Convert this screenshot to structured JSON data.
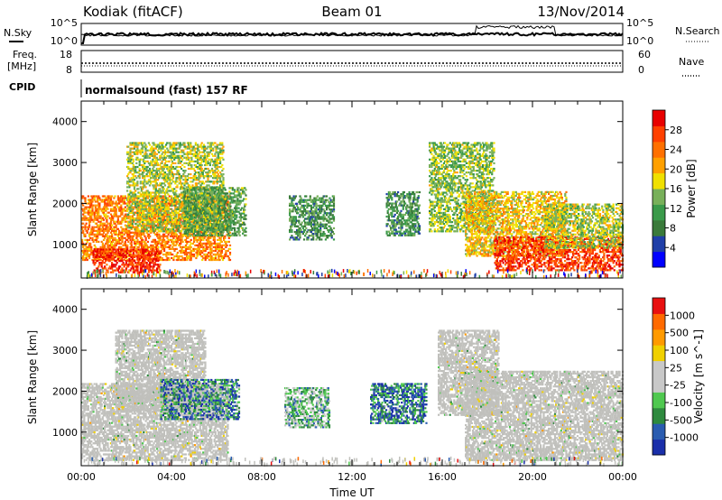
{
  "header": {
    "site": "Kodiak (fitACF)",
    "beam": "Beam 01",
    "date": "13/Nov/2014"
  },
  "strips": {
    "nsky_label": "N.Sky",
    "nsearch_label": "N.Search",
    "nsky_ticks": [
      "10^5",
      "10^0"
    ],
    "nsearch_ticks": [
      "10^5",
      "10^0"
    ],
    "freq_label_1": "Freq.",
    "freq_label_2": "[MHz]",
    "freq_ticks": [
      "18",
      "8"
    ],
    "nave_label": "Nave",
    "nave_ticks": [
      "60",
      "0"
    ],
    "cpid_label": "CPID",
    "cpid_text": "normalsound (fast) 157 RF"
  },
  "colors": {
    "power": [
      "#0000ff",
      "#1f3fa8",
      "#3a7a3a",
      "#3a9a4a",
      "#78b05a",
      "#f0e000",
      "#ffa000",
      "#ff7000",
      "#ff4000",
      "#e80000"
    ],
    "velocity": [
      "#1a2faa",
      "#2a5cb0",
      "#2e8a3e",
      "#4fc84f",
      "#c8c8c8",
      "#c8c8c8",
      "#f0d000",
      "#ff9a00",
      "#ff6a00",
      "#e81010"
    ],
    "ground_scatter": "#c0c0bc"
  },
  "chart_data": [
    {
      "type": "heatmap",
      "name": "power",
      "xlabel": "",
      "ylabel": "Slant Range [km]",
      "xlim": [
        0,
        24
      ],
      "ylim": [
        180,
        4500
      ],
      "yticks": [
        "1000",
        "2000",
        "3000",
        "4000"
      ],
      "colorbar": {
        "label": "Power [dB]",
        "ticks": [
          "28",
          "24",
          "20",
          "16",
          "12",
          "8",
          "4"
        ],
        "range": [
          0,
          32
        ]
      },
      "scatter_regions": [
        {
          "t0": 0.0,
          "t1": 6.6,
          "r0": 600,
          "r1": 2200,
          "level": 0.75
        },
        {
          "t0": 0.5,
          "t1": 3.5,
          "r0": 300,
          "r1": 900,
          "level": 0.95
        },
        {
          "t0": 2.0,
          "t1": 6.3,
          "r0": 1300,
          "r1": 3500,
          "level": 0.5
        },
        {
          "t0": 4.5,
          "t1": 7.3,
          "r0": 1200,
          "r1": 2400,
          "level": 0.35
        },
        {
          "t0": 9.2,
          "t1": 11.2,
          "r0": 1100,
          "r1": 2200,
          "level": 0.3
        },
        {
          "t0": 13.5,
          "t1": 15.0,
          "r0": 1200,
          "r1": 2300,
          "level": 0.3
        },
        {
          "t0": 15.4,
          "t1": 18.3,
          "r0": 1300,
          "r1": 3500,
          "level": 0.45
        },
        {
          "t0": 17.0,
          "t1": 21.5,
          "r0": 700,
          "r1": 2300,
          "level": 0.6
        },
        {
          "t0": 18.3,
          "t1": 24.0,
          "r0": 350,
          "r1": 1200,
          "level": 0.9
        },
        {
          "t0": 20.5,
          "t1": 24.0,
          "r0": 900,
          "r1": 2000,
          "level": 0.5
        }
      ]
    },
    {
      "type": "heatmap",
      "name": "velocity",
      "xlabel": "Time UT",
      "ylabel": "Slant Range [km]",
      "xlim": [
        0,
        24
      ],
      "ylim": [
        180,
        4500
      ],
      "xticks": [
        "00:00",
        "04:00",
        "08:00",
        "12:00",
        "16:00",
        "20:00",
        "00:00"
      ],
      "yticks": [
        "1000",
        "2000",
        "3000",
        "4000"
      ],
      "colorbar": {
        "label": "Velocity [m s^-1]",
        "ticks": [
          "1000",
          "500",
          "100",
          "25",
          "-25",
          "-100",
          "-500",
          "-1000"
        ]
      },
      "scatter_regions": [
        {
          "t0": 0.0,
          "t1": 6.5,
          "r0": 300,
          "r1": 2200,
          "level": 0.5,
          "ground": true
        },
        {
          "t0": 1.5,
          "t1": 5.5,
          "r0": 1500,
          "r1": 3500,
          "level": 0.5,
          "ground": true
        },
        {
          "t0": 3.5,
          "t1": 7.0,
          "r0": 1300,
          "r1": 2300,
          "level": 0.2
        },
        {
          "t0": 9.0,
          "t1": 11.0,
          "r0": 1100,
          "r1": 2100,
          "level": 0.35
        },
        {
          "t0": 12.8,
          "t1": 15.3,
          "r0": 1200,
          "r1": 2200,
          "level": 0.15
        },
        {
          "t0": 15.8,
          "t1": 18.5,
          "r0": 1400,
          "r1": 3500,
          "level": 0.5,
          "ground": true
        },
        {
          "t0": 17.0,
          "t1": 24.0,
          "r0": 300,
          "r1": 2500,
          "level": 0.5,
          "ground": true
        }
      ]
    }
  ]
}
